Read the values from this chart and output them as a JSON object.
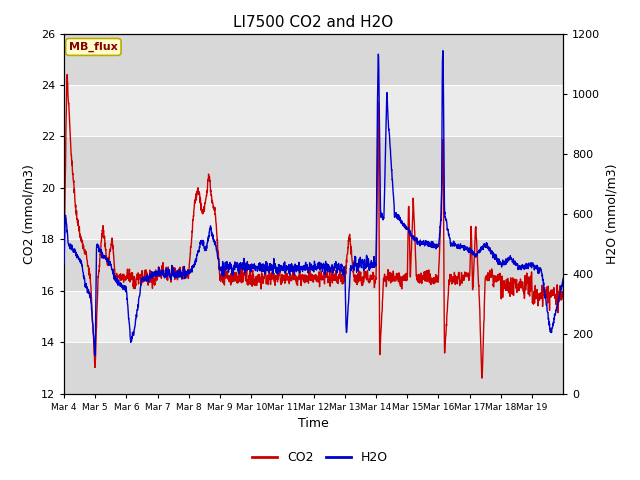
{
  "title": "LI7500 CO2 and H2O",
  "xlabel": "Time",
  "ylabel_left": "CO2 (mmol/m3)",
  "ylabel_right": "H2O (mmol/m3)",
  "ylim_left": [
    12,
    26
  ],
  "ylim_right": [
    0,
    1200
  ],
  "yticks_left": [
    12,
    14,
    16,
    18,
    20,
    22,
    24,
    26
  ],
  "yticks_right": [
    0,
    200,
    400,
    600,
    800,
    1000,
    1200
  ],
  "xtick_labels": [
    "Mar 4",
    "Mar 5",
    "Mar 6",
    "Mar 7",
    "Mar 8",
    "Mar 9",
    "Mar 10",
    "Mar 11",
    "Mar 12",
    "Mar 13",
    "Mar 14",
    "Mar 15",
    "Mar 16",
    "Mar 17",
    "Mar 18",
    "Mar 19"
  ],
  "co2_color": "#cc0000",
  "h2o_color": "#0000cc",
  "bg_outer": "#d8d8d8",
  "bg_band_light": "#ebebeb",
  "bg_band_dark": "#d8d8d8",
  "annotation_text": "MB_flux",
  "annotation_bg": "#ffffcc",
  "annotation_border": "#bbaa00",
  "linewidth": 1.0,
  "title_fontsize": 11,
  "tick_fontsize": 8,
  "label_fontsize": 9
}
